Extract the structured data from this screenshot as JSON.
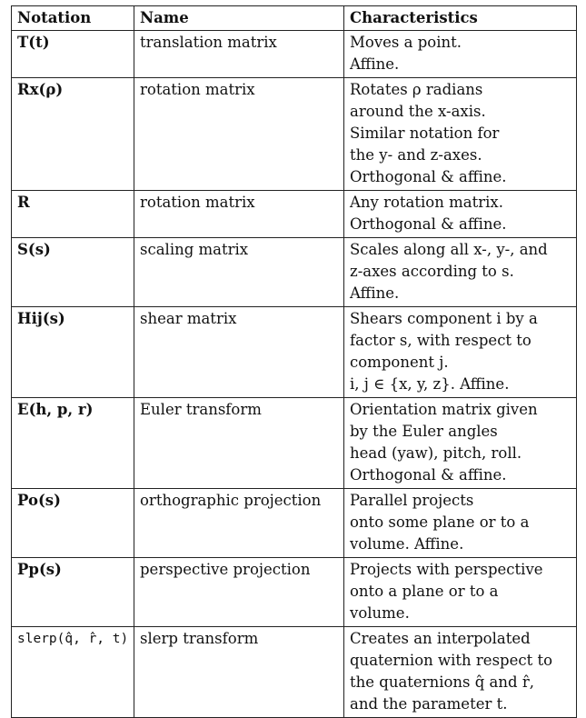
{
  "headers": {
    "notation": "Notation",
    "name": "Name",
    "characteristics": "Characteristics"
  },
  "rows": [
    {
      "notation": "T(t)",
      "name": "translation matrix",
      "characteristics": [
        "Moves a point.",
        "Affine."
      ]
    },
    {
      "notation": "Rx(ρ)",
      "name": "rotation matrix",
      "characteristics": [
        "Rotates ρ radians",
        "around the x-axis.",
        "Similar notation for",
        "the y- and z-axes.",
        "Orthogonal & affine."
      ]
    },
    {
      "notation": "R",
      "name": "rotation matrix",
      "characteristics": [
        "Any rotation matrix.",
        "Orthogonal & affine."
      ]
    },
    {
      "notation": "S(s)",
      "name": "scaling matrix",
      "characteristics": [
        "Scales along all x-, y-, and",
        "z-axes according to s.",
        "Affine."
      ]
    },
    {
      "notation": "Hij(s)",
      "name": "shear matrix",
      "characteristics": [
        "Shears component i by a",
        "factor s, with respect to",
        "component j.",
        "i, j ∈ {x, y, z}. Affine."
      ]
    },
    {
      "notation": "E(h, p, r)",
      "name": "Euler transform",
      "characteristics": [
        "Orientation matrix given",
        "by the Euler angles",
        "head (yaw), pitch, roll.",
        "Orthogonal & affine."
      ]
    },
    {
      "notation": "Po(s)",
      "name": "orthographic projection",
      "characteristics": [
        "Parallel projects",
        "onto some plane or to a",
        "volume. Affine."
      ]
    },
    {
      "notation": "Pp(s)",
      "name": "perspective projection",
      "characteristics": [
        "Projects with perspective",
        "onto a plane or to a",
        "volume."
      ]
    },
    {
      "notation": "slerp(q̂, r̂, t)",
      "name": "slerp transform",
      "characteristics": [
        "Creates an interpolated",
        "quaternion with respect to",
        "the quaternions q̂ and r̂,",
        "and the parameter t."
      ]
    }
  ]
}
